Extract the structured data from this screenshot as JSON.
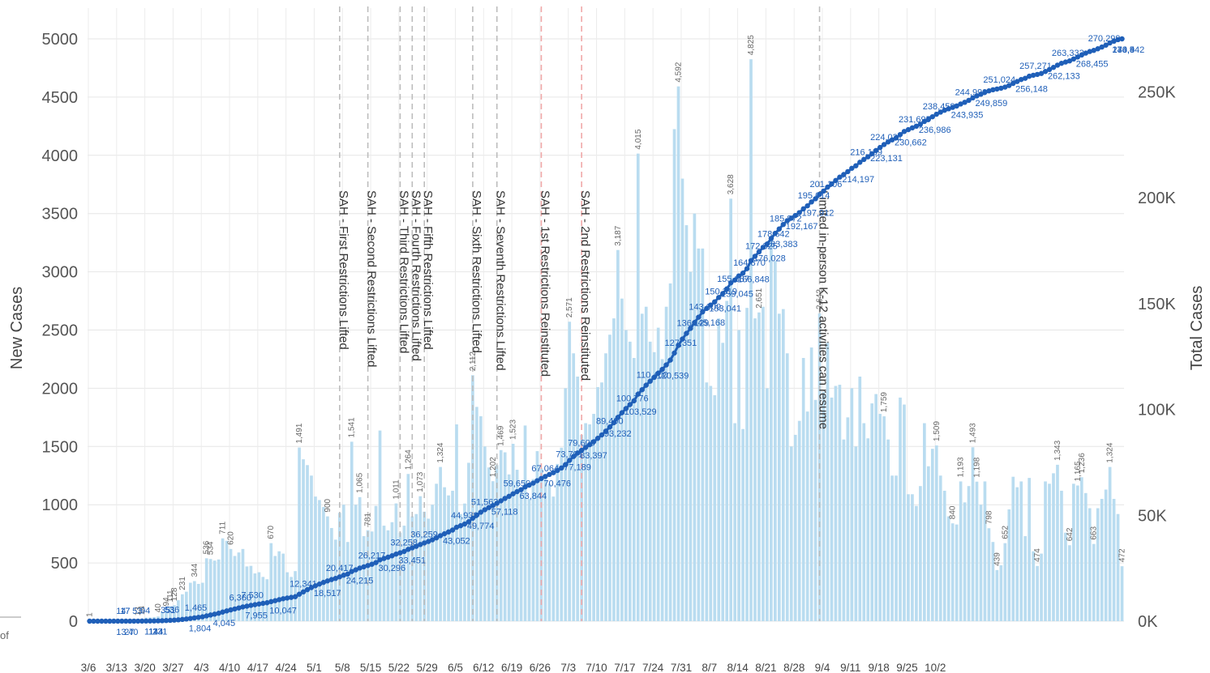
{
  "chart_data": {
    "type": "bar+line",
    "ylabel": "New Cases",
    "y2label": "Total Cases",
    "ylim": [
      0,
      5000
    ],
    "y2lim": [
      0,
      275000
    ],
    "yticks": [
      "0",
      "500",
      "1000",
      "1500",
      "2000",
      "2500",
      "3000",
      "3500",
      "4000",
      "4500",
      "5000"
    ],
    "y2ticks": [
      "0K",
      "50K",
      "100K",
      "150K",
      "200K",
      "250K"
    ],
    "xticks": [
      "3/6",
      "3/13",
      "3/20",
      "3/27",
      "4/3",
      "4/10",
      "4/17",
      "4/24",
      "5/1",
      "5/8",
      "5/15",
      "5/22",
      "5/29",
      "6/5",
      "6/12",
      "6/19",
      "6/26",
      "7/3",
      "7/10",
      "7/17",
      "7/24",
      "7/31",
      "8/7",
      "8/14",
      "8/21",
      "8/28",
      "9/4",
      "9/11",
      "9/18",
      "9/25",
      "10/2"
    ],
    "bar_color": "#b9dcf0",
    "line_color": "#1f5fb8",
    "grid": true,
    "daily_new_cases": [
      1,
      1,
      1,
      1,
      1,
      1,
      2,
      1,
      3,
      5,
      5,
      7,
      12,
      20,
      30,
      31,
      35,
      40,
      80,
      94,
      128,
      137,
      180,
      231,
      253,
      330,
      344,
      320,
      330,
      540,
      534,
      520,
      530,
      711,
      690,
      620,
      560,
      590,
      620,
      470,
      475,
      410,
      420,
      380,
      360,
      670,
      560,
      600,
      580,
      420,
      380,
      430,
      1491,
      1390,
      1340,
      1250,
      1070,
      1040,
      980,
      900,
      800,
      700,
      930,
      1000,
      680,
      1541,
      1000,
      1065,
      730,
      781,
      770,
      990,
      1637,
      820,
      780,
      850,
      1011,
      760,
      820,
      1264,
      900,
      920,
      1073,
      940,
      880,
      1000,
      1180,
      1324,
      1150,
      1080,
      1120,
      1690,
      920,
      1010,
      1360,
      2112,
      1840,
      1760,
      1500,
      1320,
      1202,
      1340,
      1469,
      1450,
      1260,
      1523,
      1300,
      1150,
      1680,
      1050,
      1220,
      1460,
      1310,
      1240,
      1180,
      1070,
      1350,
      1490,
      2000,
      2571,
      2300,
      2100,
      1600,
      1700,
      1690,
      1780,
      2010,
      2050,
      2300,
      2460,
      2600,
      3187,
      2770,
      2500,
      2400,
      2260,
      4015,
      2640,
      2700,
      2400,
      2310,
      2520,
      2250,
      2700,
      2900,
      4225,
      4592,
      3800,
      3400,
      3000,
      3500,
      3200,
      3200,
      2050,
      2020,
      1940,
      2600,
      2390,
      2750,
      3628,
      1700,
      2500,
      1650,
      2690,
      4825,
      2600,
      2651,
      2700,
      2000,
      3300,
      3093,
      2640,
      2680,
      2300,
      1500,
      1600,
      1720,
      2260,
      1800,
      2350,
      1900,
      2642,
      1970,
      2390,
      1920,
      2020,
      2030,
      1560,
      1750,
      2000,
      1500,
      2100,
      1700,
      1570,
      1870,
      1950,
      1780,
      1759,
      1560,
      1250,
      1250,
      1920,
      1860,
      1090,
      1090,
      990,
      1160,
      1700,
      1330,
      1480,
      1509,
      1250,
      1120,
      900,
      840,
      830,
      1200,
      1020,
      1160,
      1493,
      1198,
      1000,
      1200,
      798,
      680,
      439,
      480,
      670,
      960,
      1240,
      1150,
      1200,
      730,
      1230,
      600,
      474,
      580,
      1200,
      1180,
      1270,
      1343,
      1120,
      760,
      652,
      1180,
      1165,
      1236,
      1100,
      970,
      663,
      970,
      1050,
      1130,
      1324,
      1050,
      920,
      472
    ],
    "bar_labels": [
      "1",
      "13",
      "14",
      "40",
      "94",
      "111",
      "128",
      "231",
      "344",
      "534",
      "536",
      "620",
      "642",
      "670",
      "711",
      "781",
      "900",
      "1,011",
      "1,065",
      "1,073",
      "1,202",
      "1,264",
      "1,324",
      "1,469",
      "1,491",
      "1,509",
      "1,523",
      "1,541",
      "2,112",
      "2,571",
      "2,642",
      "2,651",
      "3,187",
      "3,628",
      "4,015",
      "4,592",
      "4,825",
      "1,759",
      "1,493",
      "1,343",
      "1,324",
      "1,236",
      "1,198",
      "1,193",
      "1,165",
      "840",
      "798",
      "663",
      "652",
      "474",
      "439",
      "472"
    ],
    "cumulative_labels": [
      "17",
      "13",
      "14",
      "27",
      "53",
      "144",
      "351",
      "111",
      "17",
      "40",
      "94",
      "231",
      "536",
      "1,804",
      "1,465",
      "4,045",
      "6,360",
      "7,955",
      "7,530",
      "10,047",
      "12,341",
      "18,517",
      "20,417",
      "24,215",
      "26,217",
      "30,296",
      "32,258",
      "33,451",
      "36,259",
      "43,052",
      "44,938",
      "49,774",
      "51,562",
      "57,118",
      "59,650",
      "63,844",
      "67,064",
      "70,476",
      "73,791",
      "77,189",
      "79,609",
      "83,397",
      "89,490",
      "93,232",
      "100,776",
      "103,529",
      "110,400",
      "120,539",
      "127,351",
      "133,5",
      "136,129",
      "140,4",
      "143,009",
      "145,168",
      "150,319",
      "153,041",
      "155,887",
      "159,045",
      "164,870",
      "166,848",
      "172,325",
      "176,028",
      "178,642",
      "183,383",
      "185,872",
      "192,167",
      "195,614",
      "197,912",
      "201,106",
      "214,197",
      "216,139",
      "223,131",
      "224,031",
      "230,662",
      "231,695",
      "236,986",
      "238,458",
      "243,935",
      "244,999",
      "249,859",
      "251,024",
      "256,148",
      "257,271",
      "262,133",
      "263,333",
      "268,455",
      "270,299",
      "274,942"
    ],
    "events": [
      {
        "date_index": 62,
        "label": "SAH - First Restrictions Lifted",
        "color": "#bdbdbd"
      },
      {
        "date_index": 69,
        "label": "SAH - Second Restrictions Lifted",
        "color": "#bdbdbd"
      },
      {
        "date_index": 77,
        "label": "SAH - Third Restrictions Lifted",
        "color": "#bdbdbd"
      },
      {
        "date_index": 80,
        "label": "SAH - Fourth Restrictions Lifted",
        "color": "#bdbdbd"
      },
      {
        "date_index": 83,
        "label": "SAH - Fifth Restrictions Lifted",
        "color": "#bdbdbd"
      },
      {
        "date_index": 95,
        "label": "SAH - Sixth Restrictions Lifted",
        "color": "#bdbdbd"
      },
      {
        "date_index": 101,
        "label": "SAH - Seventh Restrictions Lifted",
        "color": "#bdbdbd"
      },
      {
        "date_index": 112,
        "label": "SAH - 1st Restrictions Reinstituted",
        "color": "#f0a8a8"
      },
      {
        "date_index": 122,
        "label": "SAH - 2nd Restrictions Reinstituted",
        "color": "#f0a8a8"
      },
      {
        "date_index": 181,
        "label": "Limited in-person K-12 activities can resume",
        "color": "#bdbdbd"
      }
    ]
  },
  "side_stub": {
    "text": "of"
  }
}
